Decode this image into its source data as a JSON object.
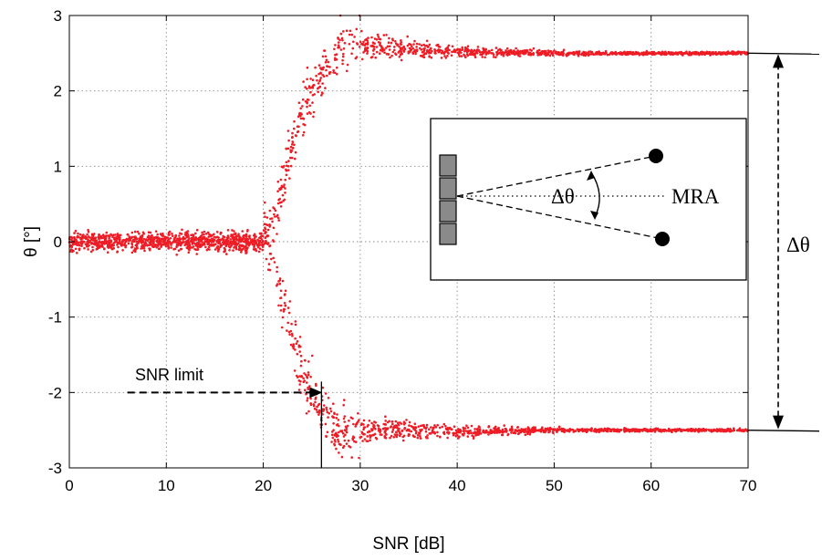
{
  "chart_data": {
    "type": "scatter",
    "xlabel": "SNR [dB]",
    "ylabel": "θ [°]",
    "xlim": [
      0,
      70
    ],
    "ylim": [
      -3,
      3
    ],
    "x_ticks": [
      0,
      10,
      20,
      30,
      40,
      50,
      60,
      70
    ],
    "y_ticks": [
      -3,
      -2,
      -1,
      0,
      1,
      2,
      3
    ],
    "grid": true,
    "point_color": "#ee1c25",
    "series": [
      {
        "x": [
          0,
          5,
          10,
          15,
          20,
          21,
          22,
          23,
          24,
          25,
          26,
          27,
          28,
          30,
          35,
          40,
          50,
          60,
          70
        ],
        "y": [
          0,
          0,
          0,
          0,
          0,
          0.2,
          0.8,
          1.3,
          1.7,
          2.0,
          2.2,
          2.4,
          2.6,
          2.6,
          2.55,
          2.52,
          2.5,
          2.5,
          2.5
        ]
      },
      {
        "x": [
          0,
          5,
          10,
          15,
          20,
          21,
          22,
          23,
          24,
          25,
          26,
          27,
          28,
          30,
          35,
          40,
          50,
          60,
          70
        ],
        "y": [
          0,
          0,
          0,
          0,
          0,
          -0.2,
          -0.8,
          -1.3,
          -1.7,
          -2.0,
          -2.2,
          -2.4,
          -2.5,
          -2.5,
          -2.5,
          -2.52,
          -2.5,
          -2.5,
          -2.5
        ]
      }
    ],
    "annotations": {
      "snr_limit_label": "SNR limit",
      "snr_limit_x": 26,
      "snr_limit_y": -2,
      "delta_theta_label": "Δθ",
      "delta_top": 2.5,
      "delta_bottom": -2.5
    },
    "inset": {
      "delta_label": "Δθ",
      "mra_label": "MRA",
      "element_count": 4
    }
  }
}
